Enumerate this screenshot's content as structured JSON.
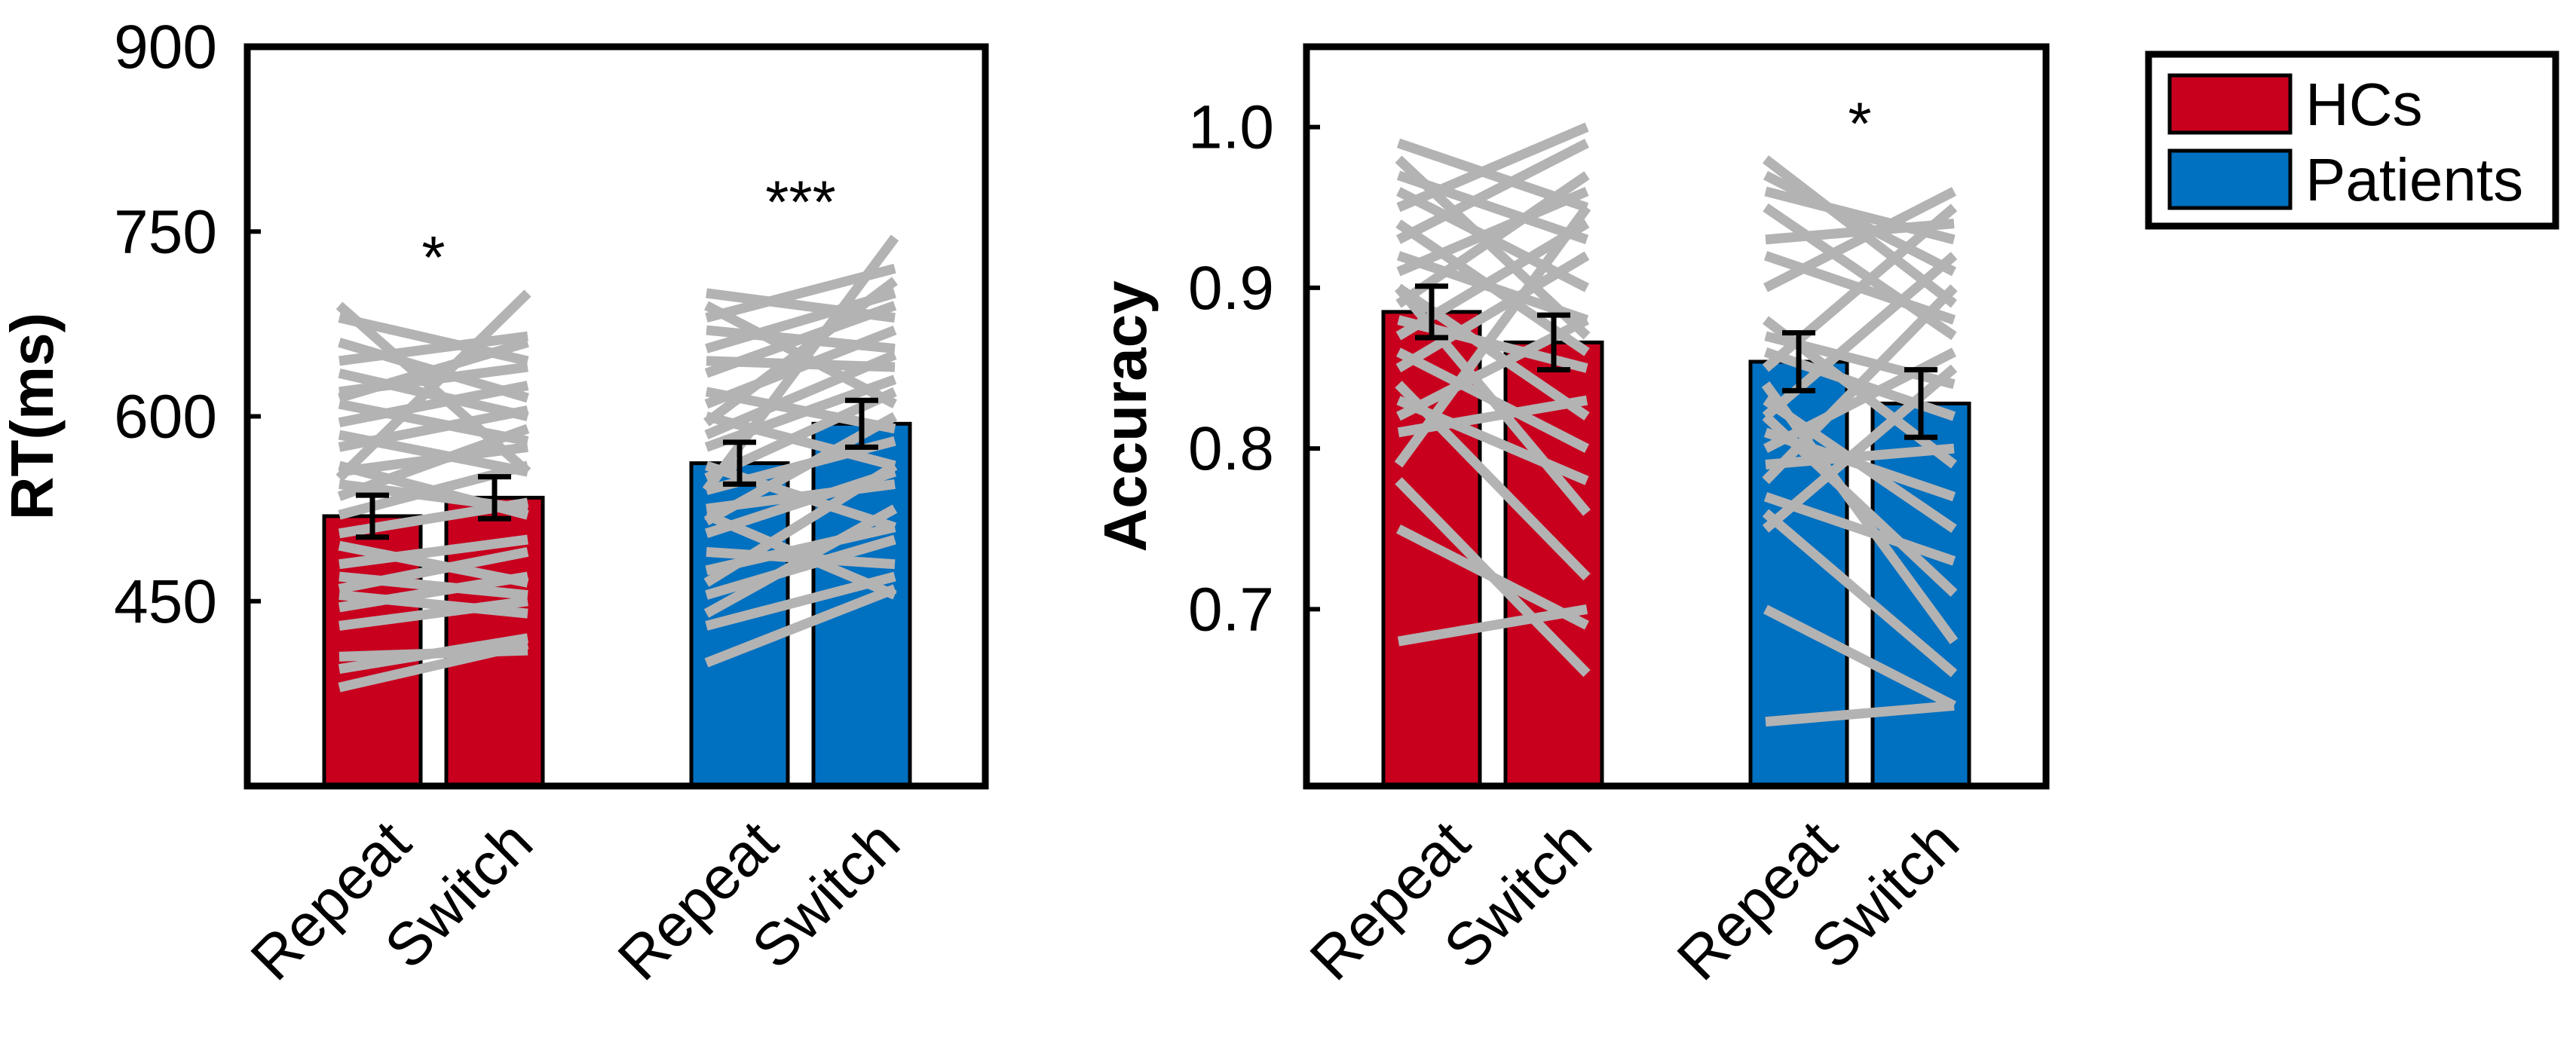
{
  "legend": {
    "position": "right",
    "entries": [
      {
        "label": "HCs",
        "color": "#c8001e"
      },
      {
        "label": "Patients",
        "color": "#0070c0"
      }
    ]
  },
  "colors": {
    "subject_lines": "#b3b3b3",
    "error_bars": "#000000",
    "frame": "#000000"
  },
  "chart_data": [
    {
      "type": "bar",
      "ylabel": "RT(ms)",
      "xlabel": "",
      "ylim": [
        300,
        900
      ],
      "yticks": [
        "450",
        "600",
        "750",
        "900"
      ],
      "grid": false,
      "groups": [
        "HCs",
        "Patients"
      ],
      "categories": [
        "Repeat",
        "Switch",
        "Repeat",
        "Switch"
      ],
      "values": [
        519,
        534,
        562,
        594
      ],
      "errors": [
        17,
        17,
        17,
        19
      ],
      "significance": [
        "*",
        "***"
      ],
      "subject_lines": [
        [
          [
            380,
            415
          ],
          [
            395,
            420
          ],
          [
            405,
            410
          ],
          [
            430,
            450
          ],
          [
            445,
            470
          ],
          [
            455,
            440
          ],
          [
            460,
            490
          ],
          [
            470,
            455
          ],
          [
            480,
            500
          ],
          [
            495,
            465
          ],
          [
            505,
            530
          ],
          [
            520,
            560
          ],
          [
            535,
            590
          ],
          [
            545,
            525
          ],
          [
            555,
            575
          ],
          [
            560,
            520
          ],
          [
            575,
            605
          ],
          [
            585,
            555
          ],
          [
            595,
            625
          ],
          [
            610,
            580
          ],
          [
            620,
            640
          ],
          [
            635,
            600
          ],
          [
            645,
            665
          ],
          [
            660,
            615
          ],
          [
            680,
            645
          ],
          [
            690,
            555
          ],
          [
            550,
            700
          ],
          [
            615,
            660
          ]
        ],
        [
          [
            400,
            460
          ],
          [
            430,
            470
          ],
          [
            440,
            525
          ],
          [
            455,
            500
          ],
          [
            465,
            560
          ],
          [
            475,
            510
          ],
          [
            490,
            480
          ],
          [
            505,
            555
          ],
          [
            515,
            600
          ],
          [
            525,
            545
          ],
          [
            540,
            580
          ],
          [
            550,
            620
          ],
          [
            560,
            510
          ],
          [
            575,
            630
          ],
          [
            585,
            650
          ],
          [
            600,
            560
          ],
          [
            610,
            670
          ],
          [
            620,
            590
          ],
          [
            635,
            690
          ],
          [
            645,
            640
          ],
          [
            655,
            700
          ],
          [
            670,
            655
          ],
          [
            680,
            720
          ],
          [
            690,
            610
          ],
          [
            700,
            680
          ],
          [
            540,
            745
          ],
          [
            520,
            455
          ],
          [
            595,
            710
          ]
        ]
      ]
    },
    {
      "type": "bar",
      "ylabel": "Accuracy",
      "xlabel": "",
      "ylim": [
        0.59,
        1.05
      ],
      "yticks": [
        "0.7",
        "0.8",
        "0.9",
        "1.0"
      ],
      "grid": false,
      "groups": [
        "HCs",
        "Patients"
      ],
      "categories": [
        "Repeat",
        "Switch",
        "Repeat",
        "Switch"
      ],
      "values": [
        0.885,
        0.866,
        0.854,
        0.828
      ],
      "errors": [
        0.016,
        0.017,
        0.018,
        0.021
      ],
      "significance": [
        "",
        "*"
      ],
      "subject_lines": [
        [
          [
            0.68,
            0.7
          ],
          [
            0.75,
            0.69
          ],
          [
            0.79,
            0.95
          ],
          [
            0.81,
            0.83
          ],
          [
            0.82,
            0.88
          ],
          [
            0.83,
            0.78
          ],
          [
            0.85,
            0.92
          ],
          [
            0.86,
            0.8
          ],
          [
            0.87,
            0.94
          ],
          [
            0.88,
            0.85
          ],
          [
            0.89,
            0.97
          ],
          [
            0.9,
            0.82
          ],
          [
            0.91,
            0.96
          ],
          [
            0.92,
            0.88
          ],
          [
            0.93,
            0.99
          ],
          [
            0.94,
            0.86
          ],
          [
            0.95,
            1.0
          ],
          [
            0.96,
            0.9
          ],
          [
            0.97,
            0.93
          ],
          [
            0.98,
            0.87
          ],
          [
            0.99,
            0.95
          ],
          [
            0.78,
            0.66
          ],
          [
            0.84,
            0.72
          ],
          [
            0.9,
            0.76
          ]
        ],
        [
          [
            0.63,
            0.64
          ],
          [
            0.7,
            0.64
          ],
          [
            0.75,
            0.85
          ],
          [
            0.77,
            0.73
          ],
          [
            0.78,
            0.9
          ],
          [
            0.79,
            0.8
          ],
          [
            0.8,
            0.86
          ],
          [
            0.81,
            0.77
          ],
          [
            0.82,
            0.92
          ],
          [
            0.83,
            0.75
          ],
          [
            0.85,
            0.95
          ],
          [
            0.86,
            0.82
          ],
          [
            0.87,
            0.84
          ],
          [
            0.88,
            0.79
          ],
          [
            0.9,
            0.96
          ],
          [
            0.92,
            0.88
          ],
          [
            0.93,
            0.94
          ],
          [
            0.95,
            0.87
          ],
          [
            0.96,
            0.93
          ],
          [
            0.97,
            0.91
          ],
          [
            0.98,
            0.89
          ],
          [
            0.84,
            0.68
          ],
          [
            0.82,
            0.71
          ],
          [
            0.76,
            0.66
          ]
        ]
      ]
    }
  ]
}
